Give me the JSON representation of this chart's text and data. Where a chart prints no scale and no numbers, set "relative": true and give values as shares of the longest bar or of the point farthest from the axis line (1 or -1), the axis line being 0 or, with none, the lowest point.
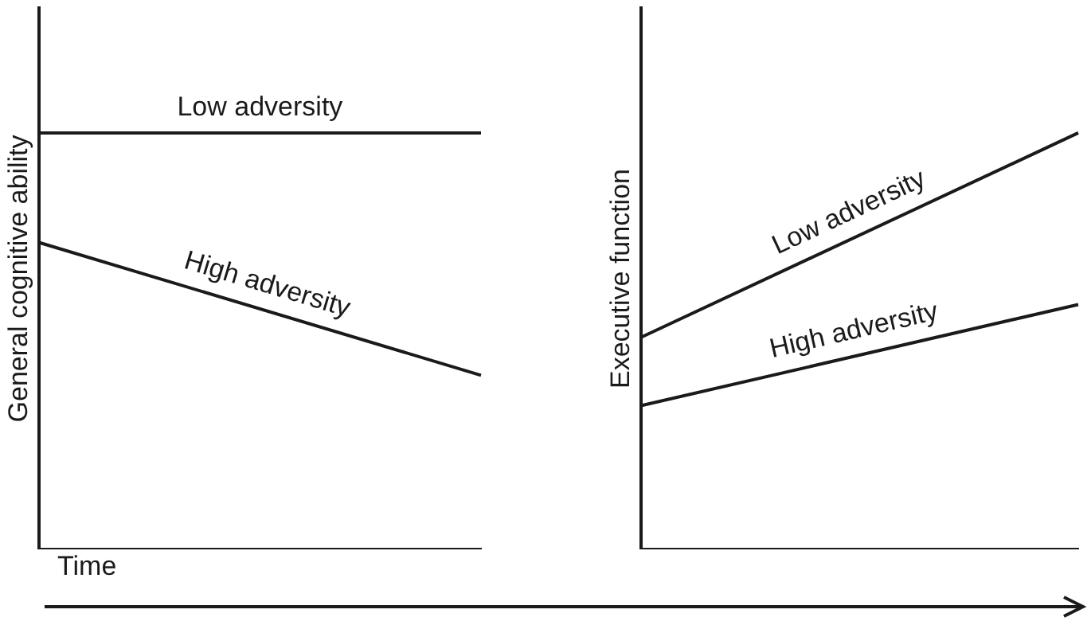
{
  "chart_data": [
    {
      "type": "line",
      "ylabel": "General cognitive ability",
      "xlabel": "Time",
      "categories": [
        null,
        null
      ],
      "relative": true,
      "tick_labels": false,
      "series": [
        {
          "name": "Low adversity",
          "color": "#1a1a1a",
          "values": [
            1,
            1
          ]
        },
        {
          "name": "High adversity",
          "color": "#1a1a1a",
          "values": [
            0.737,
            0.418
          ]
        }
      ]
    },
    {
      "type": "line",
      "ylabel": "Executive function",
      "categories": [
        null,
        null
      ],
      "relative": true,
      "tick_labels": false,
      "series": [
        {
          "name": "Low adversity",
          "color": "#1a1a1a",
          "values": [
            0.509,
            1
          ]
        },
        {
          "name": "High adversity",
          "color": "#1a1a1a",
          "values": [
            0.345,
            0.588
          ]
        }
      ]
    }
  ]
}
